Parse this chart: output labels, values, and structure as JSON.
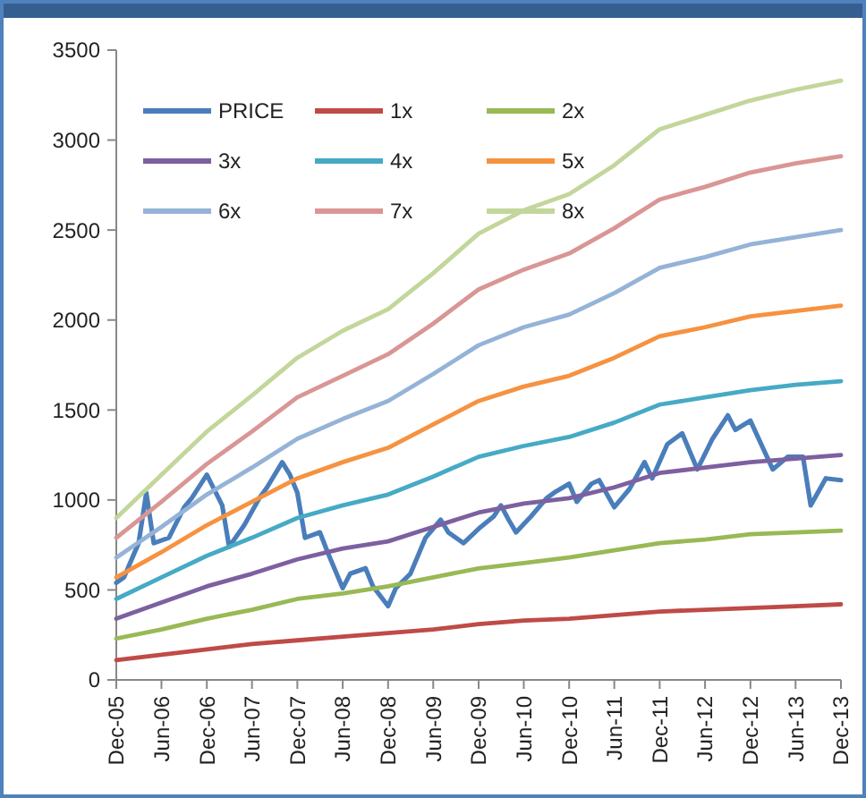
{
  "chart_data": {
    "type": "line",
    "legend": "top left",
    "grid": false,
    "ylim": [
      0,
      3500
    ],
    "yticks": [
      0,
      500,
      1000,
      1500,
      2000,
      2500,
      3000,
      3500
    ],
    "xlim": [
      "2005-12",
      "2013-12"
    ],
    "xticks": [
      {
        "value": "2005-12",
        "label": "Dec-05"
      },
      {
        "value": "2006-06",
        "label": "Jun-06"
      },
      {
        "value": "2006-12",
        "label": "Dec-06"
      },
      {
        "value": "2007-06",
        "label": "Jun-07"
      },
      {
        "value": "2007-12",
        "label": "Dec-07"
      },
      {
        "value": "2008-06",
        "label": "Jun-08"
      },
      {
        "value": "2008-12",
        "label": "Dec-08"
      },
      {
        "value": "2009-06",
        "label": "Jun-09"
      },
      {
        "value": "2009-12",
        "label": "Dec-09"
      },
      {
        "value": "2010-06",
        "label": "Jun-10"
      },
      {
        "value": "2010-12",
        "label": "Dec-10"
      },
      {
        "value": "2011-06",
        "label": "Jun-11"
      },
      {
        "value": "2011-12",
        "label": "Dec-11"
      },
      {
        "value": "2012-06",
        "label": "Jun-12"
      },
      {
        "value": "2012-12",
        "label": "Dec-12"
      },
      {
        "value": "2013-06",
        "label": "Jun-13"
      },
      {
        "value": "2013-12",
        "label": "Dec-13"
      }
    ],
    "x": [
      "2005-12",
      "2006-06",
      "2006-12",
      "2007-06",
      "2007-12",
      "2008-06",
      "2008-12",
      "2009-06",
      "2009-12",
      "2010-06",
      "2010-12",
      "2011-06",
      "2011-12",
      "2012-06",
      "2012-12",
      "2013-06",
      "2013-12"
    ],
    "series": [
      {
        "name": "PRICE",
        "color": "#4a7ebb",
        "x": [
          "2005-12",
          "2006-01",
          "2006-03",
          "2006-04",
          "2006-05",
          "2006-07",
          "2006-09",
          "2006-10",
          "2006-12",
          "2007-02",
          "2007-03",
          "2007-05",
          "2007-07",
          "2007-08",
          "2007-10",
          "2007-11",
          "2007-12",
          "2008-01",
          "2008-03",
          "2008-04",
          "2008-06",
          "2008-07",
          "2008-09",
          "2008-10",
          "2008-12",
          "2009-01",
          "2009-03",
          "2009-05",
          "2009-07",
          "2009-08",
          "2009-10",
          "2009-12",
          "2010-02",
          "2010-03",
          "2010-04",
          "2010-05",
          "2010-07",
          "2010-09",
          "2010-10",
          "2010-12",
          "2011-01",
          "2011-03",
          "2011-04",
          "2011-06",
          "2011-08",
          "2011-10",
          "2011-11",
          "2012-01",
          "2012-03",
          "2012-05",
          "2012-07",
          "2012-09",
          "2012-10",
          "2012-12",
          "2013-03",
          "2013-05",
          "2013-07",
          "2013-08",
          "2013-10",
          "2013-12"
        ],
        "values": [
          540,
          570,
          760,
          1040,
          760,
          790,
          960,
          1010,
          1140,
          970,
          740,
          860,
          1010,
          1070,
          1210,
          1140,
          1040,
          790,
          820,
          710,
          510,
          590,
          620,
          520,
          410,
          510,
          590,
          790,
          890,
          820,
          760,
          840,
          910,
          970,
          890,
          820,
          910,
          1010,
          1040,
          1090,
          990,
          1090,
          1110,
          960,
          1060,
          1210,
          1120,
          1310,
          1370,
          1170,
          1340,
          1470,
          1390,
          1440,
          1170,
          1240,
          1240,
          970,
          1120,
          1110
        ]
      },
      {
        "name": "1x",
        "color": "#be4b48",
        "values": [
          110,
          140,
          170,
          200,
          220,
          240,
          260,
          280,
          310,
          330,
          340,
          360,
          380,
          390,
          400,
          410,
          420
        ]
      },
      {
        "name": "2x",
        "color": "#98b954",
        "values": [
          230,
          280,
          340,
          390,
          450,
          480,
          520,
          570,
          620,
          650,
          680,
          720,
          760,
          780,
          810,
          820,
          830
        ]
      },
      {
        "name": "3x",
        "color": "#7d60a0",
        "values": [
          340,
          430,
          520,
          590,
          670,
          730,
          770,
          850,
          930,
          980,
          1010,
          1070,
          1150,
          1180,
          1210,
          1230,
          1250
        ]
      },
      {
        "name": "4x",
        "color": "#46aac5",
        "values": [
          450,
          570,
          690,
          790,
          900,
          970,
          1030,
          1130,
          1240,
          1300,
          1350,
          1430,
          1530,
          1570,
          1610,
          1640,
          1660
        ]
      },
      {
        "name": "5x",
        "color": "#f69240",
        "values": [
          570,
          710,
          860,
          990,
          1120,
          1210,
          1290,
          1420,
          1550,
          1630,
          1690,
          1790,
          1910,
          1960,
          2020,
          2050,
          2080
        ]
      },
      {
        "name": "6x",
        "color": "#95b3d7",
        "values": [
          680,
          850,
          1030,
          1180,
          1340,
          1450,
          1550,
          1700,
          1860,
          1960,
          2030,
          2150,
          2290,
          2350,
          2420,
          2460,
          2500
        ]
      },
      {
        "name": "7x",
        "color": "#d99694",
        "values": [
          790,
          990,
          1200,
          1380,
          1570,
          1690,
          1810,
          1980,
          2170,
          2280,
          2370,
          2510,
          2670,
          2740,
          2820,
          2870,
          2910
        ]
      },
      {
        "name": "8x",
        "color": "#c3d69b",
        "values": [
          900,
          1140,
          1380,
          1580,
          1790,
          1940,
          2060,
          2260,
          2480,
          2610,
          2700,
          2860,
          3060,
          3140,
          3220,
          3280,
          3330
        ]
      }
    ]
  }
}
